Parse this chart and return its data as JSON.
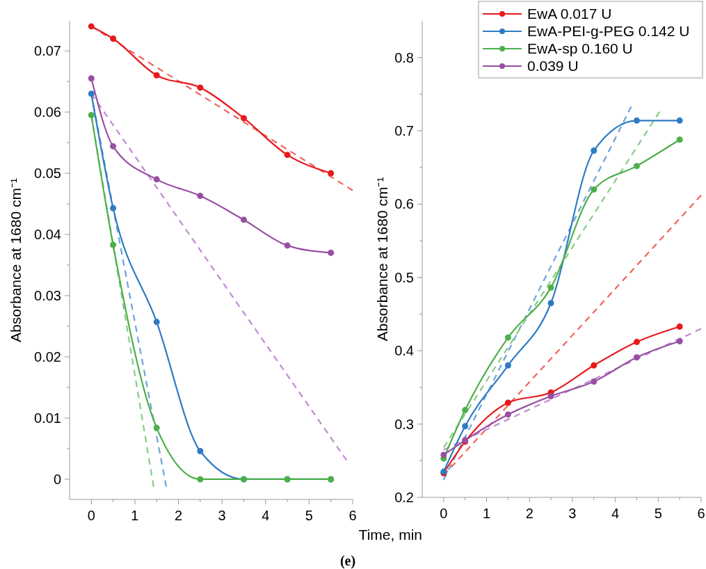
{
  "chart_data": [
    {
      "type": "line",
      "xlabel": "Time, min",
      "ylabel": "Absorbance at 1680 cm⁻¹",
      "annotations": [
        "(e)"
      ],
      "legend": false,
      "xlim": [
        -0.5,
        6
      ],
      "ylim": [
        -0.0033,
        0.0749
      ],
      "xticks": [
        0,
        {
          "value": 0.5,
          "label": null
        },
        1,
        {
          "value": 1.5,
          "label": null
        },
        2,
        {
          "value": 2.5,
          "label": null
        },
        3,
        {
          "value": 3.5,
          "label": null
        },
        4,
        {
          "value": 4.5,
          "label": null
        },
        5,
        {
          "value": 5.5,
          "label": null
        },
        6
      ],
      "yticks": [
        0,
        {
          "value": 0.005,
          "label": null
        },
        0.01,
        {
          "value": 0.015,
          "label": null
        },
        0.02,
        {
          "value": 0.025,
          "label": null
        },
        0.03,
        {
          "value": 0.035,
          "label": null
        },
        0.04,
        {
          "value": 0.045,
          "label": null
        },
        0.05,
        {
          "value": 0.055,
          "label": null
        },
        0.06,
        {
          "value": 0.065,
          "label": null
        },
        0.07
      ],
      "x": [
        0,
        0.5,
        1.5,
        2.5,
        3.5,
        4.5,
        5.5
      ],
      "series": [
        {
          "x": [
            0,
            6
          ],
          "values": [
            0.074,
            0.0472
          ],
          "color": "#f0625f",
          "line_style": "dashed",
          "marker": "none"
        },
        {
          "x": [
            0,
            5.86
          ],
          "values": [
            0.063,
            0.0031
          ],
          "color": "#c08ad0",
          "line_style": "dashed",
          "marker": "none"
        },
        {
          "x": [
            0,
            1.72
          ],
          "values": [
            0.063,
            -0.0012
          ],
          "color": "#6aa3d8",
          "line_style": "dashed",
          "marker": "none"
        },
        {
          "x": [
            0,
            1.43
          ],
          "values": [
            0.0595,
            -0.0012
          ],
          "color": "#86cc84",
          "line_style": "dashed",
          "marker": "none"
        },
        {
          "color": "#e8191c",
          "values": [
            0.074,
            0.072,
            0.066,
            0.064,
            0.059,
            0.053,
            0.05
          ],
          "marker": "circle",
          "line_style": "solid"
        },
        {
          "color": "#2e7bc4",
          "values": [
            0.063,
            0.0443,
            0.0257,
            0.0046,
            0,
            0,
            0
          ],
          "marker": "circle",
          "line_style": "solid"
        },
        {
          "color": "#4daf4a",
          "values": [
            0.0595,
            0.0383,
            0.0084,
            0,
            0,
            0,
            0
          ],
          "marker": "circle",
          "line_style": "solid"
        },
        {
          "color": "#984ea3",
          "values": [
            0.0655,
            0.0544,
            0.049,
            0.0463,
            0.0424,
            0.0382,
            0.037
          ],
          "marker": "circle",
          "line_style": "solid"
        }
      ]
    },
    {
      "type": "line",
      "ylabel": "Absorbance at 1680 cm⁻¹",
      "legend": "top right",
      "xlim": [
        -0.5,
        6
      ],
      "ylim": [
        0.2,
        0.85
      ],
      "xticks": [
        0,
        {
          "value": 0.5,
          "label": null
        },
        1,
        {
          "value": 1.5,
          "label": null
        },
        2,
        {
          "value": 2.5,
          "label": null
        },
        3,
        {
          "value": 3.5,
          "label": null
        },
        4,
        {
          "value": 4.5,
          "label": null
        },
        5,
        {
          "value": 5.5,
          "label": null
        },
        6
      ],
      "yticks": [
        0.2,
        {
          "value": 0.25,
          "label": null
        },
        0.3,
        {
          "value": 0.35,
          "label": null
        },
        0.4,
        {
          "value": 0.45,
          "label": null
        },
        0.5,
        {
          "value": 0.55,
          "label": null
        },
        0.6,
        {
          "value": 0.65,
          "label": null
        },
        0.7,
        {
          "value": 0.75,
          "label": null
        },
        0.8
      ],
      "x": [
        0,
        0.5,
        1.5,
        2.5,
        3.5,
        4.5,
        5.5
      ],
      "series": [
        {
          "x": [
            0,
            6
          ],
          "values": [
            0.23,
            0.612
          ],
          "color": "#f0625f",
          "line_style": "dashed",
          "marker": "none"
        },
        {
          "x": [
            0,
            6
          ],
          "values": [
            0.265,
            0.43
          ],
          "color": "#c08ad0",
          "line_style": "dashed",
          "marker": "none"
        },
        {
          "x": [
            0,
            4.37
          ],
          "values": [
            0.224,
            0.733
          ],
          "color": "#6aa3d8",
          "line_style": "dashed",
          "marker": "none"
        },
        {
          "x": [
            0,
            5.03
          ],
          "values": [
            0.268,
            0.726
          ],
          "color": "#86cc84",
          "line_style": "dashed",
          "marker": "none"
        },
        {
          "name": "EwA 0.017 U",
          "color": "#e8191c",
          "values": [
            0.233,
            0.276,
            0.329,
            0.343,
            0.38,
            0.412,
            0.433
          ],
          "marker": "circle",
          "line_style": "solid"
        },
        {
          "name": "EwA-PEI-g-PEG 0.142 U",
          "color": "#2e7bc4",
          "values": [
            0.235,
            0.297,
            0.38,
            0.465,
            0.673,
            0.714,
            0.714
          ],
          "marker": "circle",
          "line_style": "solid"
        },
        {
          "name": "EwA-sp 0.160 U",
          "color": "#4daf4a",
          "values": [
            0.253,
            0.319,
            0.418,
            0.486,
            0.62,
            0.652,
            0.688
          ],
          "marker": "circle",
          "line_style": "solid"
        },
        {
          "name": "0.039 U",
          "color": "#984ea3",
          "values": [
            0.258,
            0.278,
            0.313,
            0.338,
            0.358,
            0.391,
            0.413
          ],
          "marker": "circle",
          "line_style": "solid"
        }
      ]
    }
  ]
}
